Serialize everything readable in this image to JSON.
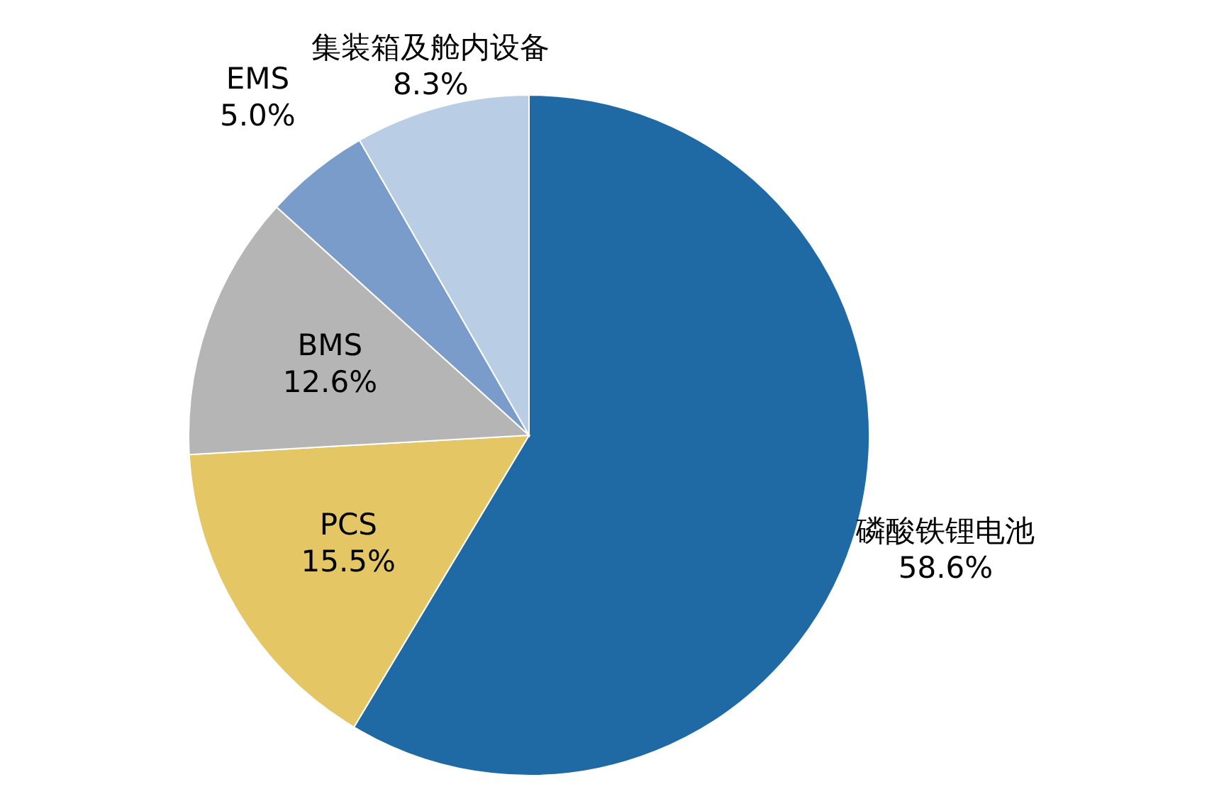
{
  "chart_data": {
    "type": "pie",
    "categories": [
      "磷酸铁锂电池",
      "PCS",
      "BMS",
      "EMS",
      "集装箱及舱内设备"
    ],
    "values": [
      58.6,
      15.5,
      12.6,
      5.0,
      8.3
    ],
    "colors": [
      "#1f6aa5",
      "#e5c665",
      "#b5b5b5",
      "#7a9ccb",
      "#b9cde5"
    ],
    "value_labels": [
      "58.6%",
      "15.5%",
      "12.6%",
      "5.0%",
      "8.3%"
    ]
  }
}
